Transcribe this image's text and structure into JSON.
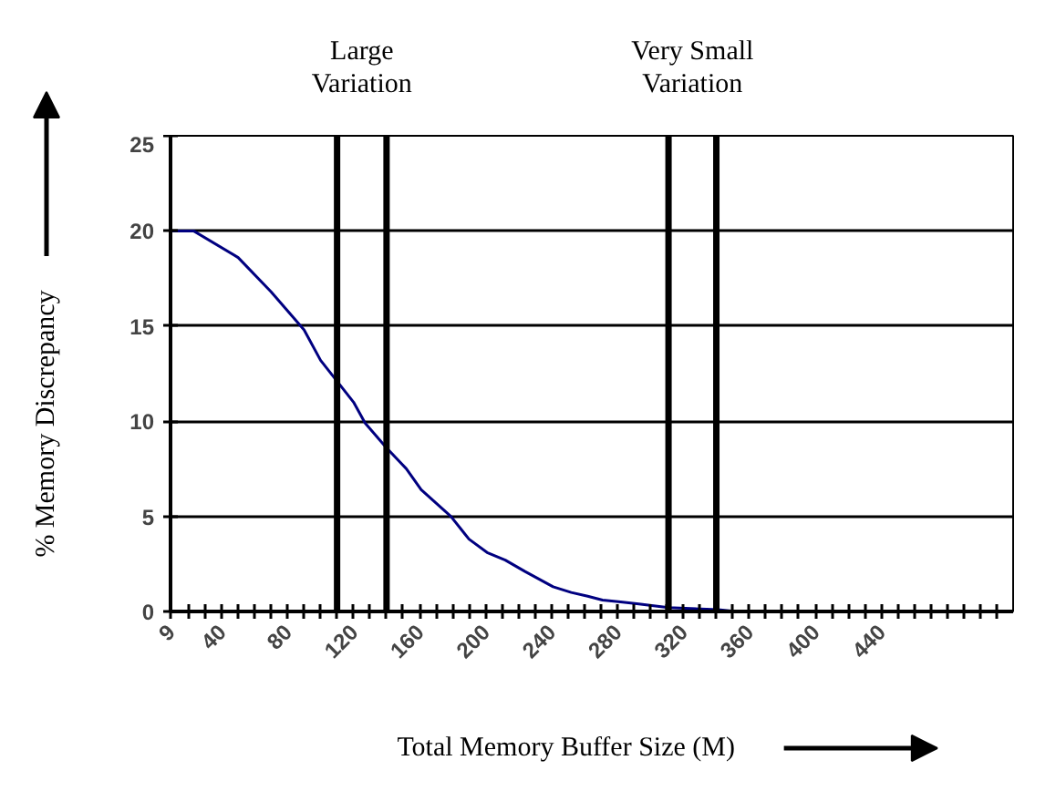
{
  "chart_data": {
    "type": "line",
    "xlabel": "Total Memory Buffer Size (M)",
    "ylabel": "% Memory Discrepancy",
    "annotations": [
      "Large Variation",
      "Very Small Variation"
    ],
    "x": [
      9,
      23,
      50,
      70,
      90,
      100,
      110,
      120,
      127,
      140,
      152,
      161,
      179,
      190,
      201,
      212,
      224,
      241,
      252,
      262,
      271,
      282,
      293,
      311,
      341,
      352,
      454
    ],
    "series": [
      {
        "color": "#000080",
        "values": [
          20,
          20,
          18.6,
          16.8,
          14.8,
          13.2,
          12.1,
          11.0,
          9.9,
          8.6,
          7.5,
          6.4,
          5.0,
          3.8,
          3.1,
          2.7,
          2.1,
          1.3,
          1.0,
          0.8,
          0.6,
          0.5,
          0.4,
          0.2,
          0.1,
          0,
          0
        ]
      }
    ],
    "xlim": [
      9,
      520
    ],
    "xticks": [
      9,
      {
        "value": 20,
        "label": null
      },
      {
        "value": 30,
        "label": null
      },
      40,
      {
        "value": 50,
        "label": null
      },
      {
        "value": 60,
        "label": null
      },
      {
        "value": 70,
        "label": null
      },
      80,
      {
        "value": 90,
        "label": null
      },
      {
        "value": 100,
        "label": null
      },
      {
        "value": 110,
        "label": null
      },
      120,
      {
        "value": 130,
        "label": null
      },
      {
        "value": 140,
        "label": null
      },
      {
        "value": 150,
        "label": null
      },
      160,
      {
        "value": 170,
        "label": null
      },
      {
        "value": 180,
        "label": null
      },
      {
        "value": 190,
        "label": null
      },
      200,
      {
        "value": 210,
        "label": null
      },
      {
        "value": 220,
        "label": null
      },
      {
        "value": 230,
        "label": null
      },
      240,
      {
        "value": 250,
        "label": null
      },
      {
        "value": 260,
        "label": null
      },
      {
        "value": 270,
        "label": null
      },
      280,
      {
        "value": 290,
        "label": null
      },
      {
        "value": 300,
        "label": null
      },
      {
        "value": 310,
        "label": null
      },
      320,
      {
        "value": 330,
        "label": null
      },
      {
        "value": 340,
        "label": null
      },
      {
        "value": 350,
        "label": null
      },
      360,
      {
        "value": 370,
        "label": null
      },
      {
        "value": 380,
        "label": null
      },
      {
        "value": 390,
        "label": null
      },
      400,
      {
        "value": 410,
        "label": null
      },
      {
        "value": 420,
        "label": null
      },
      {
        "value": 430,
        "label": null
      },
      440,
      {
        "value": 450,
        "label": null
      },
      {
        "value": 460,
        "label": null
      },
      {
        "value": 470,
        "label": null
      },
      {
        "value": 480,
        "label": null
      },
      {
        "value": 490,
        "label": null
      },
      {
        "value": 500,
        "label": null
      },
      {
        "value": 510,
        "label": null
      }
    ],
    "ylim": [
      0,
      25
    ],
    "yticks": [
      0,
      5,
      10,
      15,
      20,
      25
    ],
    "grid": "y",
    "marker": "none",
    "line_style": "solid",
    "ref_lines": [
      {
        "axis": "x",
        "value": 110,
        "color": "#000000"
      },
      {
        "axis": "x",
        "value": 140,
        "color": "#000000"
      },
      {
        "axis": "x",
        "value": 311,
        "color": "#000000"
      },
      {
        "axis": "x",
        "value": 340,
        "color": "#000000"
      }
    ]
  }
}
